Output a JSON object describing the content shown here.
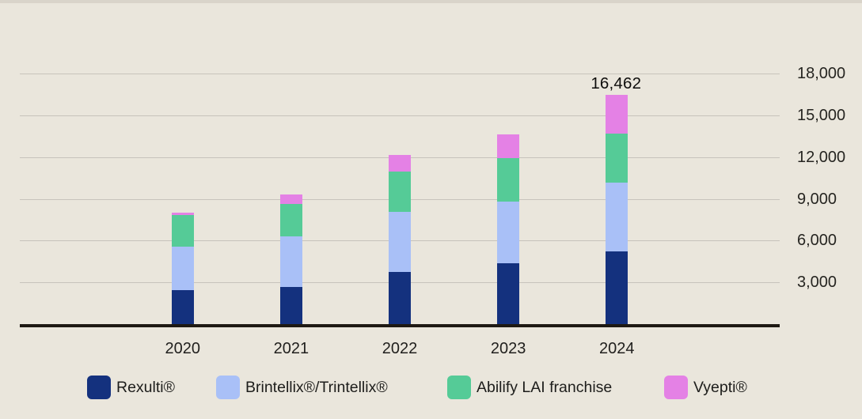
{
  "chart_data": {
    "type": "bar",
    "stacked": true,
    "title": "",
    "categories": [
      "2020",
      "2021",
      "2022",
      "2023",
      "2024"
    ],
    "series": [
      {
        "name": "Rexulti®",
        "color": "#14317E",
        "values": [
          2450,
          2690,
          3740,
          4400,
          5228
        ]
      },
      {
        "name": "Brintellix®/Trintellix®",
        "color": "#A9C0F7",
        "values": [
          3130,
          3610,
          4320,
          4400,
          4948
        ]
      },
      {
        "name": "Abilify LAI franchise",
        "color": "#55CB97",
        "values": [
          2280,
          2350,
          2920,
          3150,
          3508
        ]
      },
      {
        "name": "Vyepti®",
        "color": "#E481E5",
        "values": [
          150,
          660,
          1200,
          1700,
          2778
        ]
      }
    ],
    "totals": [
      8010,
      9310,
      12180,
      13650,
      16462
    ],
    "data_labels": {
      "2024": "16,462"
    },
    "y_axis": {
      "min": 0,
      "max": 18000,
      "tick_step": 3000,
      "tick_labels": [
        "3,000",
        "6,000",
        "9,000",
        "12,000",
        "15,000",
        "18,000"
      ],
      "side": "right"
    },
    "x_axis": {
      "labels": [
        "2020",
        "2021",
        "2022",
        "2023",
        "2024"
      ]
    },
    "grid": true,
    "legend_position": "bottom",
    "colors": {
      "background": "#EAE6DC",
      "gridline": "#C7C3BB",
      "axis": "#1E1913",
      "label_text": "#21201E",
      "top_border": "#D9D4CA"
    }
  }
}
